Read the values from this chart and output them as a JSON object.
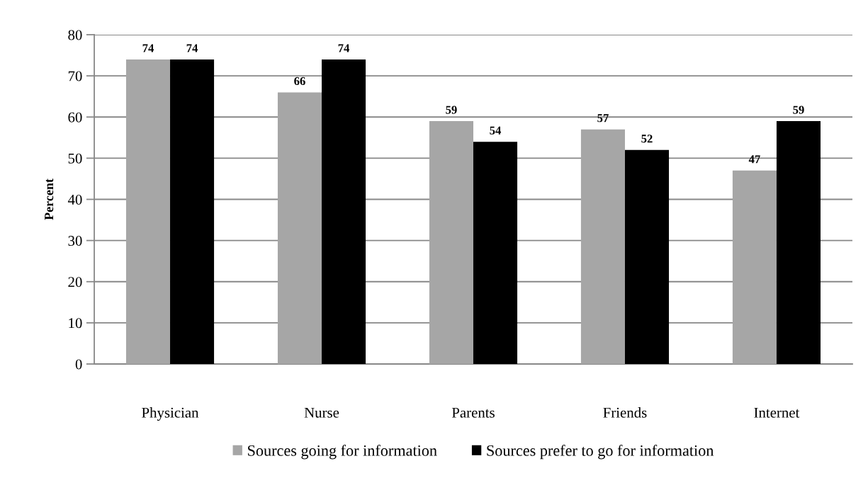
{
  "chart_data": {
    "type": "bar",
    "ylabel": "Percent",
    "categories": [
      "Physician",
      "Nurse",
      "Parents",
      "Friends",
      "Internet"
    ],
    "series": [
      {
        "name": "Sources going for information",
        "color": "#a6a6a6",
        "values": [
          74,
          66,
          59,
          57,
          47
        ]
      },
      {
        "name": "Sources prefer to go for information",
        "color": "#000000",
        "values": [
          74,
          74,
          54,
          52,
          59
        ]
      }
    ],
    "ylim": [
      0,
      80
    ],
    "yticks": [
      0,
      10,
      20,
      30,
      40,
      50,
      60,
      70,
      80
    ],
    "grid": "y",
    "legend": "bottom",
    "data_labels": true
  }
}
